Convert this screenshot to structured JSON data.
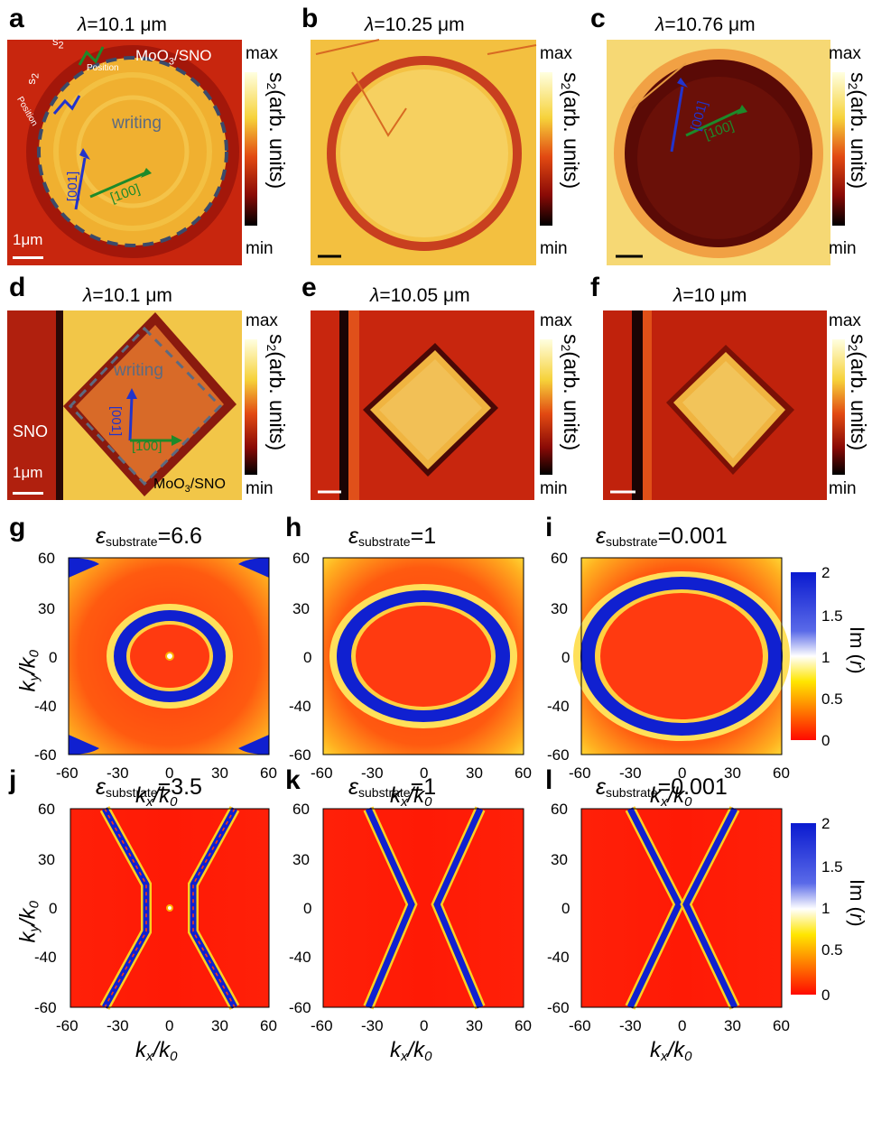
{
  "panels_top": [
    {
      "letter": "a",
      "title_prefix": "λ",
      "title_value": "=10.1 μm"
    },
    {
      "letter": "b",
      "title_prefix": "λ",
      "title_value": "=10.25 μm"
    },
    {
      "letter": "c",
      "title_prefix": "λ",
      "title_value": "=10.76 μm"
    },
    {
      "letter": "d",
      "title_prefix": "λ",
      "title_value": "=10.1 μm"
    },
    {
      "letter": "e",
      "title_prefix": "λ",
      "title_value": "=10.05 μm"
    },
    {
      "letter": "f",
      "title_prefix": "λ",
      "title_value": "=10 μm"
    }
  ],
  "colorbar_top": {
    "max": "max",
    "min": "min",
    "label_s": "s",
    "label_sub": "2",
    "label_rest": "(arb. units)"
  },
  "annotations": {
    "writing": "writing",
    "moo3_sno_a": "MoO",
    "moo3_sub": "3",
    "moo3_rest": "/SNO",
    "sno": "SNO",
    "scale": "1μm",
    "dir_001": "[001]",
    "dir_100": "[100]",
    "s2": "s",
    "s2sub": "2",
    "position": "Position"
  },
  "panels_bottom": [
    {
      "letter": "g",
      "eps_value": "=6.6"
    },
    {
      "letter": "h",
      "eps_value": "=1"
    },
    {
      "letter": "i",
      "eps_value": "=0.001"
    },
    {
      "letter": "j",
      "eps_value": "=3.5"
    },
    {
      "letter": "k",
      "eps_value": "=1"
    },
    {
      "letter": "l",
      "eps_value": "=0.001"
    }
  ],
  "eps_symbol": "ε",
  "eps_sub": "substrate",
  "axes": {
    "xlabel_k": "k",
    "xlabel_sub": "x",
    "xlabel_rest": "/k",
    "xlabel_sub0": "0",
    "ylabel_k": "k",
    "ylabel_sub": "y",
    "ylabel_rest": "/k",
    "ylabel_sub0": "0",
    "x_ticks": [
      "-60",
      "-30",
      "0",
      "30",
      "60"
    ],
    "y_ticks": [
      "60",
      "30",
      "0",
      "-40",
      "-60"
    ]
  },
  "colorbar_bottom": {
    "ticks": [
      "2",
      "1.5",
      "1",
      "0.5",
      "0"
    ],
    "label": "Im (",
    "label_i": "r",
    "label_end": ")"
  }
}
